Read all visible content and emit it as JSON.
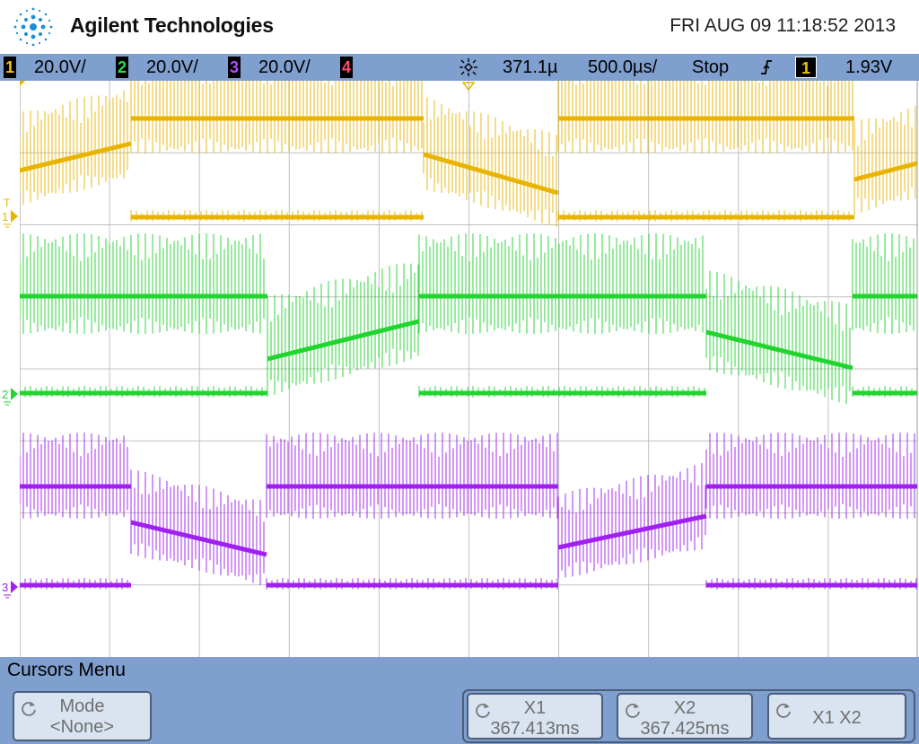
{
  "header": {
    "brand": "Agilent Technologies",
    "datetime": "FRI AUG 09 11:18:52 2013"
  },
  "status": {
    "channels": [
      {
        "num": "1",
        "scale": "20.0V/",
        "color": "#f5c400"
      },
      {
        "num": "2",
        "scale": "20.0V/",
        "color": "#27e03c"
      },
      {
        "num": "3",
        "scale": "20.0V/",
        "color": "#b34dff"
      },
      {
        "num": "4",
        "scale": "",
        "color": "#ff4d6e"
      }
    ],
    "delay": "371.1µ",
    "timebase": "500.0µs/",
    "run_state": "Stop",
    "trigger_source": "1",
    "trigger_level": "1.93V",
    "trigger_icon": "rising-edge-icon",
    "delay_icon": "trigger-delay-icon"
  },
  "waveform": {
    "channel_markers": [
      "1",
      "2",
      "3"
    ],
    "trigger_marker": "T",
    "colors": {
      "ch1": "#e8b400",
      "ch2": "#22d42f",
      "ch3": "#a020f0",
      "grid": "#c0c0c0"
    }
  },
  "menu": {
    "title": "Cursors Menu",
    "softkeys": [
      {
        "id": "mode",
        "line1": "Mode",
        "line2": "<None>"
      },
      {
        "id": "x1",
        "line1": "X1",
        "line2": "367.413ms"
      },
      {
        "id": "x2",
        "line1": "X2",
        "line2": "367.425ms"
      },
      {
        "id": "x1x2",
        "line1": "X1 X2",
        "line2": ""
      }
    ]
  }
}
